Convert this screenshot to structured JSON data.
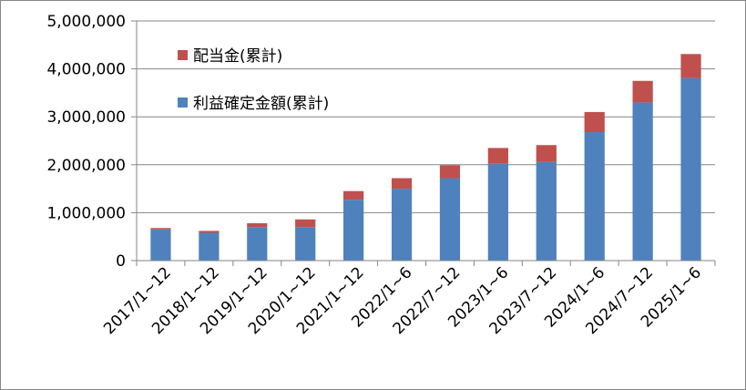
{
  "chart_data": {
    "type": "bar",
    "stacked": true,
    "categories": [
      "2017/1~12",
      "2018/1~12",
      "2019/1~12",
      "2020/1~12",
      "2021/1~12",
      "2022/1~6",
      "2022/7~12",
      "2023/1~6",
      "2023/7~12",
      "2024/1~6",
      "2024/7~12",
      "2025/1~6"
    ],
    "series": [
      {
        "name": "利益確定金額(累計)",
        "color": "#4f81bd",
        "values": [
          650000,
          580000,
          700000,
          700000,
          1270000,
          1500000,
          1720000,
          2020000,
          2060000,
          2680000,
          3300000,
          3810000
        ]
      },
      {
        "name": "配当金(累計)",
        "color": "#c0504d",
        "values": [
          30000,
          40000,
          80000,
          160000,
          180000,
          220000,
          270000,
          330000,
          350000,
          420000,
          450000,
          500000
        ]
      }
    ],
    "y_ticks": [
      "0",
      "1,000,000",
      "2,000,000",
      "3,000,000",
      "4,000,000",
      "5,000,000"
    ],
    "ylim": [
      0,
      5000000
    ],
    "grid": "horizontal",
    "legend": [
      {
        "label": "配当金(累計)",
        "color": "#c0504d"
      },
      {
        "label": "利益確定金額(累計)",
        "color": "#4f81bd"
      }
    ],
    "legend_position": "top-left"
  }
}
